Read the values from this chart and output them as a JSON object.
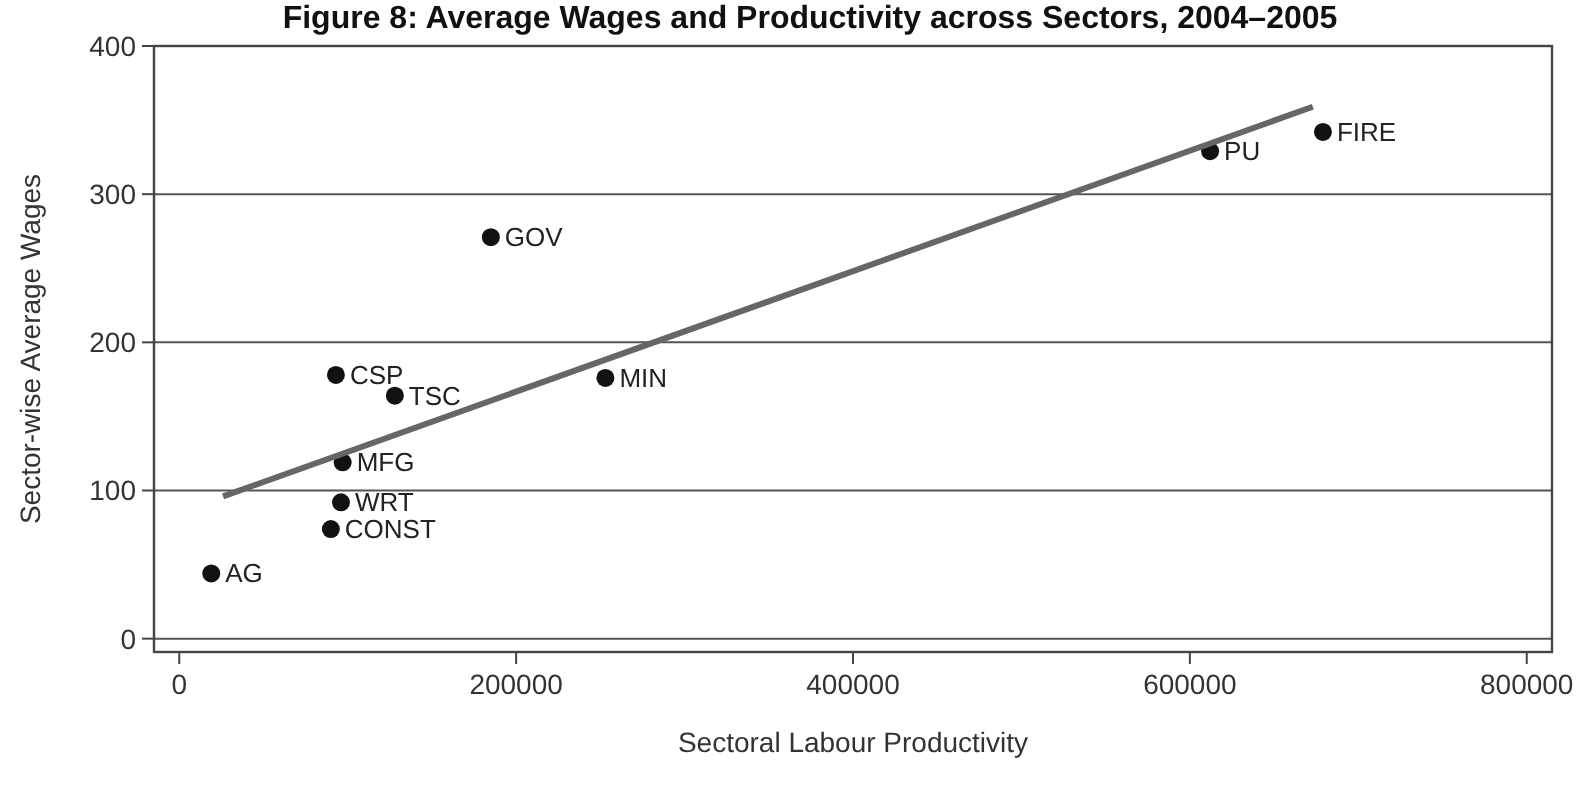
{
  "chart_data": {
    "type": "scatter",
    "title": "Figure 8: Average Wages and Productivity across Sectors, 2004–2005",
    "xlabel": "Sectoral Labour Productivity",
    "ylabel": "Sector-wise Average Wages",
    "xlim": [
      -15000,
      815000
    ],
    "ylim": [
      -9,
      400
    ],
    "xticks": [
      0,
      200000,
      400000,
      600000,
      800000
    ],
    "yticks": [
      0,
      100,
      200,
      300,
      400
    ],
    "grid": "y",
    "series": [
      {
        "marker": "circle",
        "color": "#111111",
        "x": [
          19000,
          90000,
          96000,
          97000,
          93000,
          128000,
          185000,
          253000,
          612000,
          679000
        ],
        "values": [
          44,
          74,
          92,
          119,
          178,
          164,
          271,
          176,
          329,
          342
        ]
      },
      {
        "type": "line",
        "marker": "none",
        "color": "#666666",
        "x": [
          26000,
          673000
        ],
        "values": [
          96,
          359
        ]
      }
    ],
    "annotations": [
      {
        "text": "AG",
        "x": 19000,
        "y": 44
      },
      {
        "text": "CONST",
        "x": 90000,
        "y": 74
      },
      {
        "text": "WRT",
        "x": 96000,
        "y": 92
      },
      {
        "text": "MFG",
        "x": 97000,
        "y": 119
      },
      {
        "text": "CSP",
        "x": 93000,
        "y": 178
      },
      {
        "text": "TSC",
        "x": 128000,
        "y": 164
      },
      {
        "text": "GOV",
        "x": 185000,
        "y": 271
      },
      {
        "text": "MIN",
        "x": 253000,
        "y": 176
      },
      {
        "text": "PU",
        "x": 612000,
        "y": 329
      },
      {
        "text": "FIRE",
        "x": 679000,
        "y": 342
      }
    ]
  }
}
